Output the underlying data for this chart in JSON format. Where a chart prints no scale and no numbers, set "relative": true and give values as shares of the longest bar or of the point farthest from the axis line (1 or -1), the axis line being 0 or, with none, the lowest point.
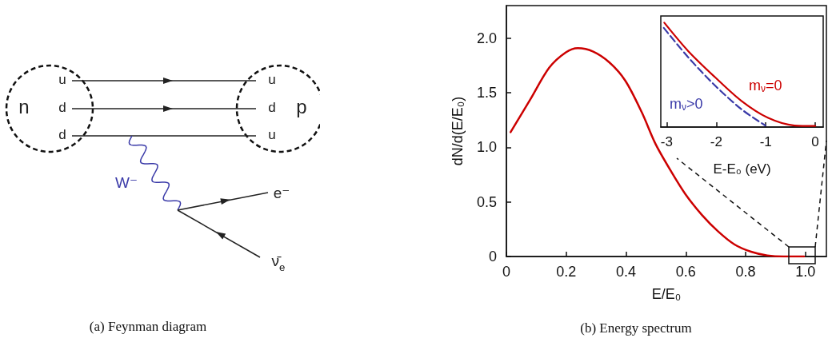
{
  "chart_data": [
    {
      "type": "other",
      "title": "(a) Feynman diagram",
      "annotations": [
        "n",
        "u",
        "d",
        "d",
        "u",
        "d",
        "u",
        "p",
        "W⁻",
        "e⁻",
        "ν̄$_{e}$"
      ]
    },
    {
      "type": "line",
      "title": "(b) Energy spectrum",
      "xlabel": "E/E₀",
      "ylabel": "dN/d(E/E₀)",
      "xlim": [
        0,
        1.07
      ],
      "xticks": [
        0,
        0.2,
        0.4,
        0.6,
        0.8,
        {
          "value": 1,
          "label": "1.0"
        }
      ],
      "ylim": [
        0,
        2.3
      ],
      "yticks": [
        0,
        0.5,
        {
          "value": 1,
          "label": "1.0"
        },
        1.5,
        {
          "value": 2,
          "label": "2.0"
        }
      ],
      "marker": "none",
      "line_style": "solid",
      "series": [
        {
          "color": "#cc0000",
          "x": [
            0.014,
            0.08,
            0.143,
            0.198,
            0.239,
            0.289,
            0.344,
            0.398,
            0.453,
            0.499,
            0.553,
            0.599,
            0.654,
            0.708,
            0.763,
            0.818,
            0.872,
            0.927,
            0.995
          ],
          "values": [
            1.14,
            1.44,
            1.73,
            1.87,
            1.91,
            1.88,
            1.78,
            1.61,
            1.32,
            1.03,
            0.77,
            0.57,
            0.38,
            0.23,
            0.11,
            0.044,
            0.01,
            0,
            0
          ]
        }
      ]
    },
    {
      "type": "line",
      "xlabel": "E-E₀ (eV)",
      "xlim": [
        -3.12,
        0.16
      ],
      "xticks": [
        -3,
        -2,
        -1,
        0
      ],
      "relative": true,
      "tick_labels": "x",
      "marker": "none",
      "series": [
        {
          "name": "m$_{ν}$=0",
          "color": "#cc0000",
          "line_style": "solid",
          "x": [
            -3.05,
            -2.57,
            -2.03,
            -1.49,
            -0.96,
            -0.42,
            0
          ],
          "values": [
            1,
            0.73,
            0.48,
            0.25,
            0.09,
            0.015,
            0.01
          ]
        },
        {
          "name": "m$_{ν}$>0",
          "color": "#3a3aa8",
          "line_style": "dashed",
          "x": [
            -3.06,
            -2.57,
            -2.03,
            -1.49,
            -1.01
          ],
          "values": [
            0.95,
            0.67,
            0.4,
            0.17,
            0.015
          ]
        }
      ]
    }
  ]
}
